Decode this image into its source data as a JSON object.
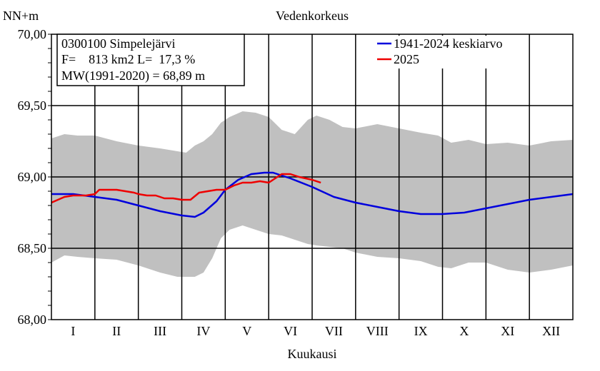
{
  "chart_data": {
    "type": "line",
    "title": "Vedenkorkeus",
    "ylabel": "NN+m",
    "xlabel": "Kuukausi",
    "ylim": [
      68.0,
      70.0
    ],
    "yticks": [
      "70,00",
      "69,50",
      "69,00",
      "68,50",
      "68,00"
    ],
    "ytick_values": [
      70.0,
      69.5,
      69.0,
      68.5,
      68.0
    ],
    "categories": [
      "I",
      "II",
      "III",
      "IV",
      "V",
      "VI",
      "VII",
      "VIII",
      "IX",
      "X",
      "XI",
      "XII"
    ],
    "grid": true,
    "legend_position": "top-right",
    "info": {
      "line1": "0300100 Simpelejärvi",
      "line2": "F=    813 km2 L=  17,3 %",
      "line3": "MW(1991-2020) = 68,89 m"
    },
    "colors": {
      "mean": "#0000dd",
      "current": "#ee0000",
      "band": "#c0c0c0"
    },
    "band": {
      "x": [
        0,
        0.3,
        0.6,
        1.0,
        1.5,
        2.0,
        2.5,
        2.9,
        3.1,
        3.3,
        3.5,
        3.7,
        3.9,
        4.1,
        4.4,
        4.7,
        5.0,
        5.3,
        5.6,
        5.9,
        6.1,
        6.4,
        6.7,
        7.0,
        7.5,
        8.0,
        8.5,
        8.9,
        9.2,
        9.6,
        10.0,
        10.5,
        11.0,
        11.5,
        12.0
      ],
      "upper": [
        69.27,
        69.3,
        69.29,
        69.29,
        69.25,
        69.22,
        69.2,
        69.18,
        69.17,
        69.22,
        69.25,
        69.3,
        69.38,
        69.42,
        69.46,
        69.45,
        69.42,
        69.33,
        69.3,
        69.4,
        69.43,
        69.4,
        69.35,
        69.34,
        69.37,
        69.34,
        69.31,
        69.29,
        69.24,
        69.26,
        69.23,
        69.24,
        69.22,
        69.25,
        69.26
      ],
      "lower": [
        68.4,
        68.45,
        68.44,
        68.43,
        68.42,
        68.38,
        68.33,
        68.3,
        68.3,
        68.3,
        68.33,
        68.43,
        68.57,
        68.63,
        68.66,
        68.63,
        68.6,
        68.59,
        68.56,
        68.53,
        68.52,
        68.51,
        68.5,
        68.47,
        68.44,
        68.43,
        68.41,
        68.37,
        68.36,
        68.4,
        68.4,
        68.35,
        68.33,
        68.35,
        68.38
      ]
    },
    "series": [
      {
        "name": "1941-2024 keskiarvo",
        "x": [
          0,
          0.5,
          1.0,
          1.5,
          2.0,
          2.5,
          3.0,
          3.3,
          3.5,
          3.8,
          4.0,
          4.3,
          4.6,
          4.9,
          5.1,
          5.5,
          6.0,
          6.5,
          7.0,
          7.5,
          8.0,
          8.5,
          9.0,
          9.5,
          10.0,
          10.5,
          11.0,
          11.5,
          12.0
        ],
        "values": [
          68.88,
          68.88,
          68.86,
          68.84,
          68.8,
          68.76,
          68.73,
          68.72,
          68.75,
          68.83,
          68.91,
          68.98,
          69.02,
          69.03,
          69.03,
          68.99,
          68.93,
          68.86,
          68.82,
          68.79,
          68.76,
          68.74,
          68.74,
          68.75,
          68.78,
          68.81,
          68.84,
          68.86,
          68.88
        ]
      },
      {
        "name": "2025",
        "x": [
          0,
          0.15,
          0.3,
          0.5,
          0.8,
          1.0,
          1.1,
          1.3,
          1.5,
          1.7,
          1.9,
          2.0,
          2.2,
          2.4,
          2.6,
          2.8,
          3.0,
          3.2,
          3.4,
          3.6,
          3.8,
          4.0,
          4.2,
          4.4,
          4.6,
          4.8,
          5.0,
          5.1,
          5.3,
          5.5,
          5.7,
          6.0,
          6.2
        ],
        "values": [
          68.82,
          68.84,
          68.86,
          68.87,
          68.87,
          68.88,
          68.91,
          68.91,
          68.91,
          68.9,
          68.89,
          68.88,
          68.87,
          68.87,
          68.85,
          68.85,
          68.84,
          68.84,
          68.89,
          68.9,
          68.91,
          68.91,
          68.94,
          68.96,
          68.96,
          68.97,
          68.96,
          68.98,
          69.02,
          69.02,
          69.0,
          68.98,
          68.96
        ]
      }
    ]
  }
}
